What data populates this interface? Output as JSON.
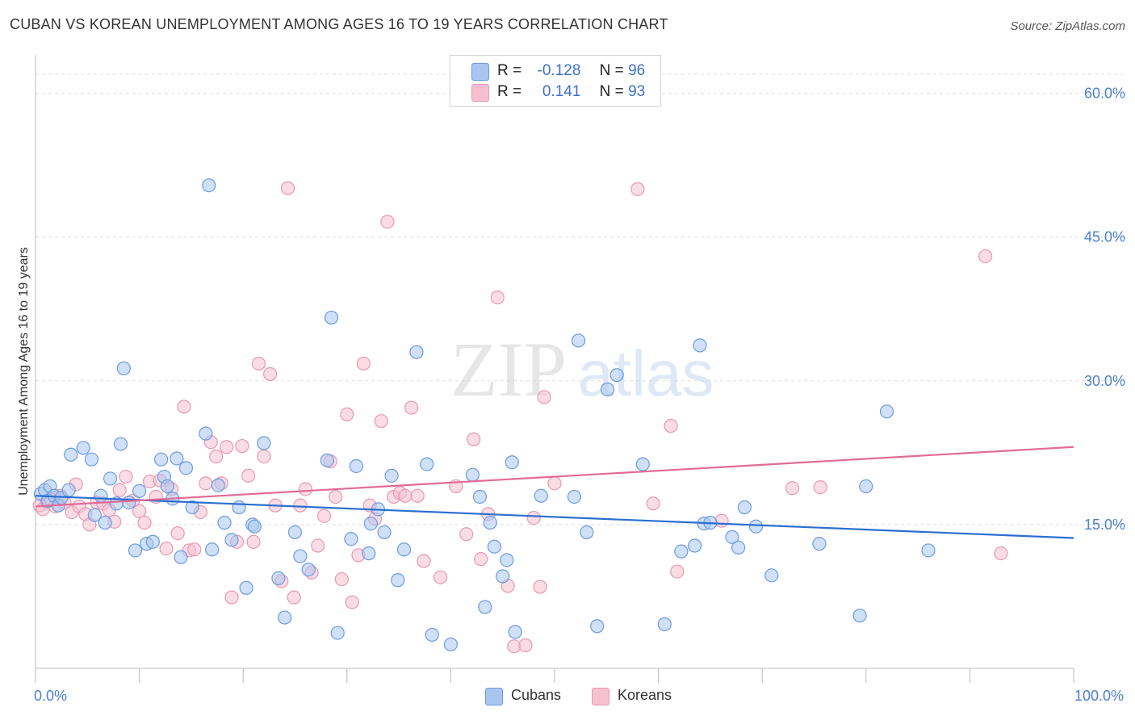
{
  "header": {
    "title": "CUBAN VS KOREAN UNEMPLOYMENT AMONG AGES 16 TO 19 YEARS CORRELATION CHART",
    "source": "Source: ZipAtlas.com"
  },
  "watermark": {
    "zip": "ZIP",
    "atlas": "atlas"
  },
  "legend": {
    "cubans": {
      "r_label": "R =",
      "r_value": "-0.128",
      "n_label": "N =",
      "n_value": "96"
    },
    "koreans": {
      "r_label": "R =",
      "r_value": "0.141",
      "n_label": "N =",
      "n_value": "93"
    }
  },
  "colors": {
    "cubans_fill": "#a9c6f0",
    "cubans_stroke": "#6b9be0",
    "cubans_line": "#2a6fd0",
    "koreans_fill": "#f6c0d0",
    "koreans_stroke": "#e898b2",
    "koreans_line": "#e06b96",
    "tick_label": "#4a7fd0",
    "grid": "#dddddd"
  },
  "chart_data": {
    "type": "scatter",
    "title": "CUBAN VS KOREAN UNEMPLOYMENT AMONG AGES 16 TO 19 YEARS CORRELATION CHART",
    "xlabel": "",
    "ylabel": "Unemployment Among Ages 16 to 19 years",
    "xlim": [
      0,
      100
    ],
    "ylim": [
      0,
      63
    ],
    "x_tick_labels": {
      "min": "0.0%",
      "max": "100.0%"
    },
    "y_ticks": [
      {
        "value": 15,
        "label": "15.0%"
      },
      {
        "value": 30,
        "label": "30.0%"
      },
      {
        "value": 45,
        "label": "45.0%"
      },
      {
        "value": 60,
        "label": "60.0%"
      }
    ],
    "grid": "horizontal dashed",
    "legend_placement": "top-center",
    "series": [
      {
        "name": "Cubans",
        "trend": {
          "x": [
            0,
            100
          ],
          "y": [
            18.0,
            13.6
          ]
        },
        "points": [
          [
            0.5,
            18.2
          ],
          [
            0.9,
            18.6
          ],
          [
            1.2,
            17.5
          ],
          [
            1.4,
            19.0
          ],
          [
            1.8,
            18.0
          ],
          [
            2.2,
            17.0
          ],
          [
            2.5,
            17.8
          ],
          [
            3.2,
            18.6
          ],
          [
            3.4,
            22.3
          ],
          [
            4.6,
            23.0
          ],
          [
            5.4,
            21.8
          ],
          [
            5.7,
            16.0
          ],
          [
            6.3,
            18.0
          ],
          [
            6.7,
            15.2
          ],
          [
            7.2,
            19.8
          ],
          [
            7.8,
            17.2
          ],
          [
            8.2,
            23.4
          ],
          [
            8.5,
            31.3
          ],
          [
            9.0,
            17.3
          ],
          [
            9.6,
            12.3
          ],
          [
            10.0,
            18.5
          ],
          [
            10.7,
            13.0
          ],
          [
            11.3,
            13.2
          ],
          [
            12.1,
            21.8
          ],
          [
            12.4,
            20.0
          ],
          [
            12.7,
            19.0
          ],
          [
            13.2,
            17.7
          ],
          [
            13.6,
            21.9
          ],
          [
            14.0,
            11.6
          ],
          [
            14.5,
            20.9
          ],
          [
            15.1,
            16.8
          ],
          [
            16.4,
            24.5
          ],
          [
            16.7,
            50.4
          ],
          [
            17.0,
            12.4
          ],
          [
            17.6,
            19.1
          ],
          [
            18.2,
            15.2
          ],
          [
            18.9,
            13.4
          ],
          [
            19.6,
            16.8
          ],
          [
            20.3,
            8.4
          ],
          [
            20.9,
            15.0
          ],
          [
            21.1,
            14.8
          ],
          [
            22.0,
            23.5
          ],
          [
            23.4,
            9.4
          ],
          [
            24.0,
            5.3
          ],
          [
            25.0,
            14.2
          ],
          [
            25.5,
            11.7
          ],
          [
            26.3,
            10.3
          ],
          [
            28.1,
            21.7
          ],
          [
            28.5,
            36.6
          ],
          [
            29.1,
            3.7
          ],
          [
            30.4,
            13.5
          ],
          [
            30.9,
            21.1
          ],
          [
            32.1,
            12.0
          ],
          [
            32.3,
            15.1
          ],
          [
            33.0,
            16.6
          ],
          [
            33.6,
            14.2
          ],
          [
            34.3,
            20.1
          ],
          [
            34.9,
            9.2
          ],
          [
            35.5,
            12.4
          ],
          [
            36.7,
            33.0
          ],
          [
            37.7,
            21.3
          ],
          [
            38.2,
            3.5
          ],
          [
            40.0,
            2.5
          ],
          [
            42.1,
            20.2
          ],
          [
            42.8,
            17.9
          ],
          [
            43.3,
            6.4
          ],
          [
            43.8,
            15.2
          ],
          [
            44.2,
            12.7
          ],
          [
            45.0,
            9.6
          ],
          [
            45.4,
            11.3
          ],
          [
            45.9,
            21.5
          ],
          [
            46.2,
            3.8
          ],
          [
            48.7,
            18.0
          ],
          [
            51.9,
            17.9
          ],
          [
            52.3,
            34.2
          ],
          [
            53.1,
            14.2
          ],
          [
            54.1,
            4.4
          ],
          [
            55.1,
            29.1
          ],
          [
            56.0,
            30.6
          ],
          [
            58.5,
            21.3
          ],
          [
            60.6,
            4.6
          ],
          [
            62.2,
            12.2
          ],
          [
            63.5,
            12.8
          ],
          [
            64.0,
            33.7
          ],
          [
            64.4,
            15.1
          ],
          [
            65.0,
            15.2
          ],
          [
            67.1,
            13.7
          ],
          [
            67.7,
            12.6
          ],
          [
            68.3,
            16.8
          ],
          [
            69.4,
            14.8
          ],
          [
            70.9,
            9.7
          ],
          [
            75.5,
            13.0
          ],
          [
            79.4,
            5.5
          ],
          [
            80.0,
            19.0
          ],
          [
            82.0,
            26.8
          ],
          [
            86.0,
            12.3
          ]
        ]
      },
      {
        "name": "Koreans",
        "trend": {
          "x": [
            0,
            100
          ],
          "y": [
            16.9,
            23.1
          ]
        },
        "points": [
          [
            0.4,
            17.0
          ],
          [
            0.7,
            16.6
          ],
          [
            1.1,
            17.4
          ],
          [
            1.5,
            17.6
          ],
          [
            1.9,
            16.9
          ],
          [
            2.4,
            18.0
          ],
          [
            2.8,
            17.3
          ],
          [
            3.5,
            16.3
          ],
          [
            3.9,
            19.2
          ],
          [
            4.2,
            16.9
          ],
          [
            4.8,
            16.1
          ],
          [
            5.2,
            15.0
          ],
          [
            5.9,
            17.3
          ],
          [
            6.5,
            17.2
          ],
          [
            7.1,
            16.5
          ],
          [
            7.6,
            15.3
          ],
          [
            8.1,
            18.6
          ],
          [
            8.7,
            20.0
          ],
          [
            9.4,
            17.5
          ],
          [
            10.0,
            16.4
          ],
          [
            10.5,
            15.2
          ],
          [
            11.0,
            19.5
          ],
          [
            11.6,
            17.9
          ],
          [
            12.0,
            19.6
          ],
          [
            12.6,
            12.5
          ],
          [
            13.1,
            18.7
          ],
          [
            13.7,
            14.1
          ],
          [
            14.3,
            27.3
          ],
          [
            14.8,
            12.3
          ],
          [
            15.3,
            12.4
          ],
          [
            15.9,
            16.3
          ],
          [
            16.4,
            19.3
          ],
          [
            16.9,
            23.6
          ],
          [
            17.4,
            22.1
          ],
          [
            17.9,
            19.3
          ],
          [
            18.4,
            23.1
          ],
          [
            18.9,
            7.4
          ],
          [
            19.4,
            13.2
          ],
          [
            19.9,
            23.2
          ],
          [
            20.5,
            20.1
          ],
          [
            21.0,
            13.2
          ],
          [
            21.5,
            31.8
          ],
          [
            22.0,
            22.1
          ],
          [
            22.6,
            30.7
          ],
          [
            23.1,
            17.0
          ],
          [
            23.7,
            9.1
          ],
          [
            24.3,
            50.1
          ],
          [
            24.9,
            7.4
          ],
          [
            25.5,
            17.0
          ],
          [
            26.0,
            18.7
          ],
          [
            26.6,
            10.0
          ],
          [
            27.2,
            12.8
          ],
          [
            27.8,
            15.9
          ],
          [
            28.4,
            21.6
          ],
          [
            28.9,
            17.9
          ],
          [
            29.5,
            9.3
          ],
          [
            30.0,
            26.5
          ],
          [
            30.5,
            6.9
          ],
          [
            31.1,
            11.8
          ],
          [
            31.6,
            31.8
          ],
          [
            32.2,
            17.0
          ],
          [
            32.7,
            15.6
          ],
          [
            33.3,
            25.8
          ],
          [
            33.9,
            46.6
          ],
          [
            34.5,
            17.9
          ],
          [
            35.1,
            18.3
          ],
          [
            35.6,
            18.0
          ],
          [
            36.2,
            27.2
          ],
          [
            36.8,
            18.0
          ],
          [
            37.4,
            11.2
          ],
          [
            39.0,
            9.5
          ],
          [
            40.5,
            19.0
          ],
          [
            41.5,
            14.0
          ],
          [
            42.2,
            23.9
          ],
          [
            42.9,
            11.4
          ],
          [
            43.6,
            16.1
          ],
          [
            44.5,
            38.7
          ],
          [
            45.5,
            8.6
          ],
          [
            46.1,
            2.3
          ],
          [
            47.2,
            2.4
          ],
          [
            48.0,
            15.7
          ],
          [
            48.6,
            8.5
          ],
          [
            49.0,
            28.3
          ],
          [
            50.0,
            19.3
          ],
          [
            58.0,
            50.0
          ],
          [
            59.5,
            17.2
          ],
          [
            61.2,
            25.3
          ],
          [
            61.8,
            10.1
          ],
          [
            66.1,
            15.4
          ],
          [
            72.9,
            18.8
          ],
          [
            75.6,
            18.9
          ],
          [
            91.5,
            43.0
          ],
          [
            93.0,
            12.0
          ]
        ]
      }
    ]
  }
}
